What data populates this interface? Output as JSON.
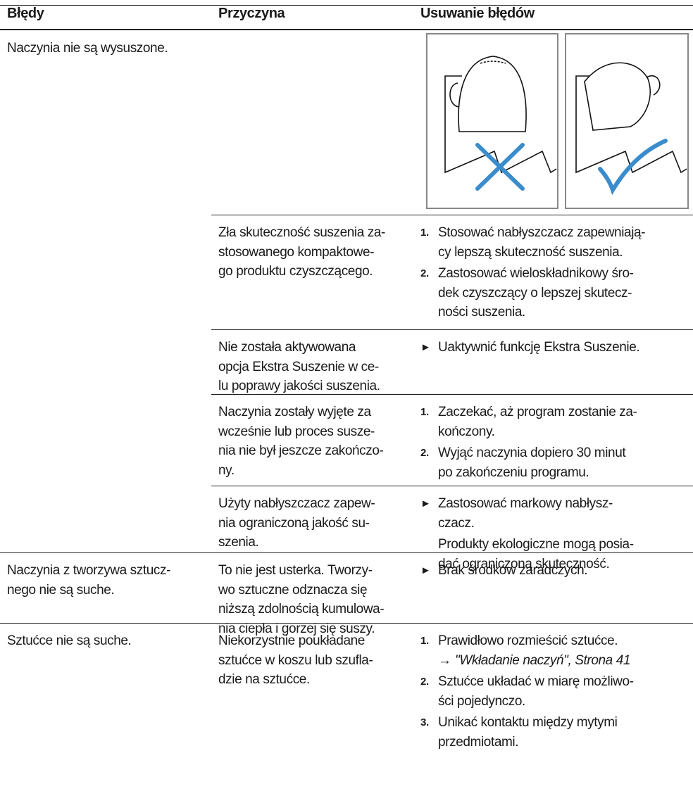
{
  "header": {
    "columns": [
      "Błędy",
      "Przyczyna",
      "Usuwanie błędów"
    ]
  },
  "rows": [
    {
      "fault": [
        "Naczynia nie są wysuszone."
      ],
      "causes": [
        {
          "cause": [
            "Zła skuteczność suszenia za-",
            "stosowanego kompaktowe-",
            "go produktu czyszczącego."
          ],
          "remedy": [
            {
              "marker": "1.",
              "lines": [
                "Stosować nabłyszczacz zapewniają-",
                "cy lepszą skuteczność suszenia."
              ]
            },
            {
              "marker": "2.",
              "lines": [
                "Zastosować wieloskładnikowy śro-",
                "dek czyszczący o lepszej skutecz-",
                "ności suszenia."
              ]
            }
          ]
        },
        {
          "cause": [
            "Nie została aktywowana",
            "opcja Ekstra Suszenie w ce-",
            "lu poprawy jakości suszenia."
          ],
          "remedy": [
            {
              "marker": "►",
              "lines": [
                "Uaktywnić funkcję Ekstra Suszenie."
              ]
            }
          ]
        },
        {
          "cause": [
            "Naczynia zostały wyjęte za",
            "wcześnie lub proces susze-",
            "nia nie był jeszcze zakończo-",
            "ny."
          ],
          "remedy": [
            {
              "marker": "1.",
              "lines": [
                "Zaczekać, aż program zostanie za-",
                "kończony."
              ]
            },
            {
              "marker": "2.",
              "lines": [
                "Wyjąć naczynia dopiero 30 minut",
                "po zakończeniu programu."
              ]
            }
          ]
        },
        {
          "cause": [
            "Użyty nabłyszczacz zapew-",
            "nia ograniczoną jakość su-",
            "szenia."
          ],
          "remedy": [
            {
              "marker": "►",
              "lines": [
                "Zastosować markowy nabłysz-",
                "czacz."
              ]
            },
            {
              "lines": [
                "Produkty ekologiczne mogą posia-",
                "dać ograniczoną skuteczność."
              ]
            }
          ]
        }
      ]
    },
    {
      "fault": [
        "Naczynia z tworzywa sztucz-",
        "nego nie są suche."
      ],
      "causes": [
        {
          "cause": [
            "To nie jest usterka. Tworzy-",
            "wo sztuczne odznacza się",
            "niższą zdolnością kumulowa-",
            "nia ciepła i gorzej się suszy."
          ],
          "remedy": [
            {
              "marker": "►",
              "lines": [
                "Brak środków zaradczych."
              ]
            }
          ]
        }
      ]
    },
    {
      "fault": [
        "Sztućce nie są suche."
      ],
      "causes": [
        {
          "cause": [
            "Niekorzystnie poukładane",
            "sztućce w koszu lub szufla-",
            "dzie na sztućce."
          ],
          "remedy": [
            {
              "marker": "1.",
              "lines": [
                "Prawidłowo rozmieścić sztućce."
              ],
              "link": {
                "arrow": "→",
                "text": "\"Wkładanie naczyń\", Strona 41"
              }
            },
            {
              "marker": "2.",
              "lines": [
                "Sztućce układać w miarę możliwo-",
                "ści pojedynczo."
              ]
            },
            {
              "marker": "3.",
              "lines": [
                "Unikać kontaktu między mytymi",
                "przedmiotami."
              ]
            }
          ]
        }
      ]
    }
  ]
}
